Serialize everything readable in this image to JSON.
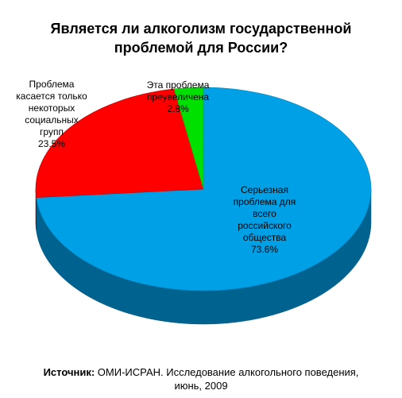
{
  "chart_data": {
    "type": "pie",
    "title": [
      "Является ли алкоголизм государственной",
      "проблемой для России?"
    ],
    "slices": [
      {
        "label_lines": [
          "Серьезная",
          "проблема для",
          "всего",
          "российского",
          "общества"
        ],
        "value": 73.6,
        "value_label": "73.6%",
        "color": "#00A0E6"
      },
      {
        "label_lines": [
          "Проблема",
          "касается только",
          "некоторых",
          "социальных",
          "групп"
        ],
        "value": 23.5,
        "value_label": "23.5%",
        "color": "#FF0000"
      },
      {
        "label_lines": [
          "Эта проблема",
          "преувеличена"
        ],
        "value": 2.8,
        "value_label": "2.8%",
        "color": "#00E000"
      }
    ],
    "style": "3d-tilted",
    "legend": "none"
  },
  "source": {
    "prefix": "Источник:",
    "text": " ОМИ-ИСРАН. Исследование алкогольного поведения,",
    "line2": "июнь, 2009"
  }
}
